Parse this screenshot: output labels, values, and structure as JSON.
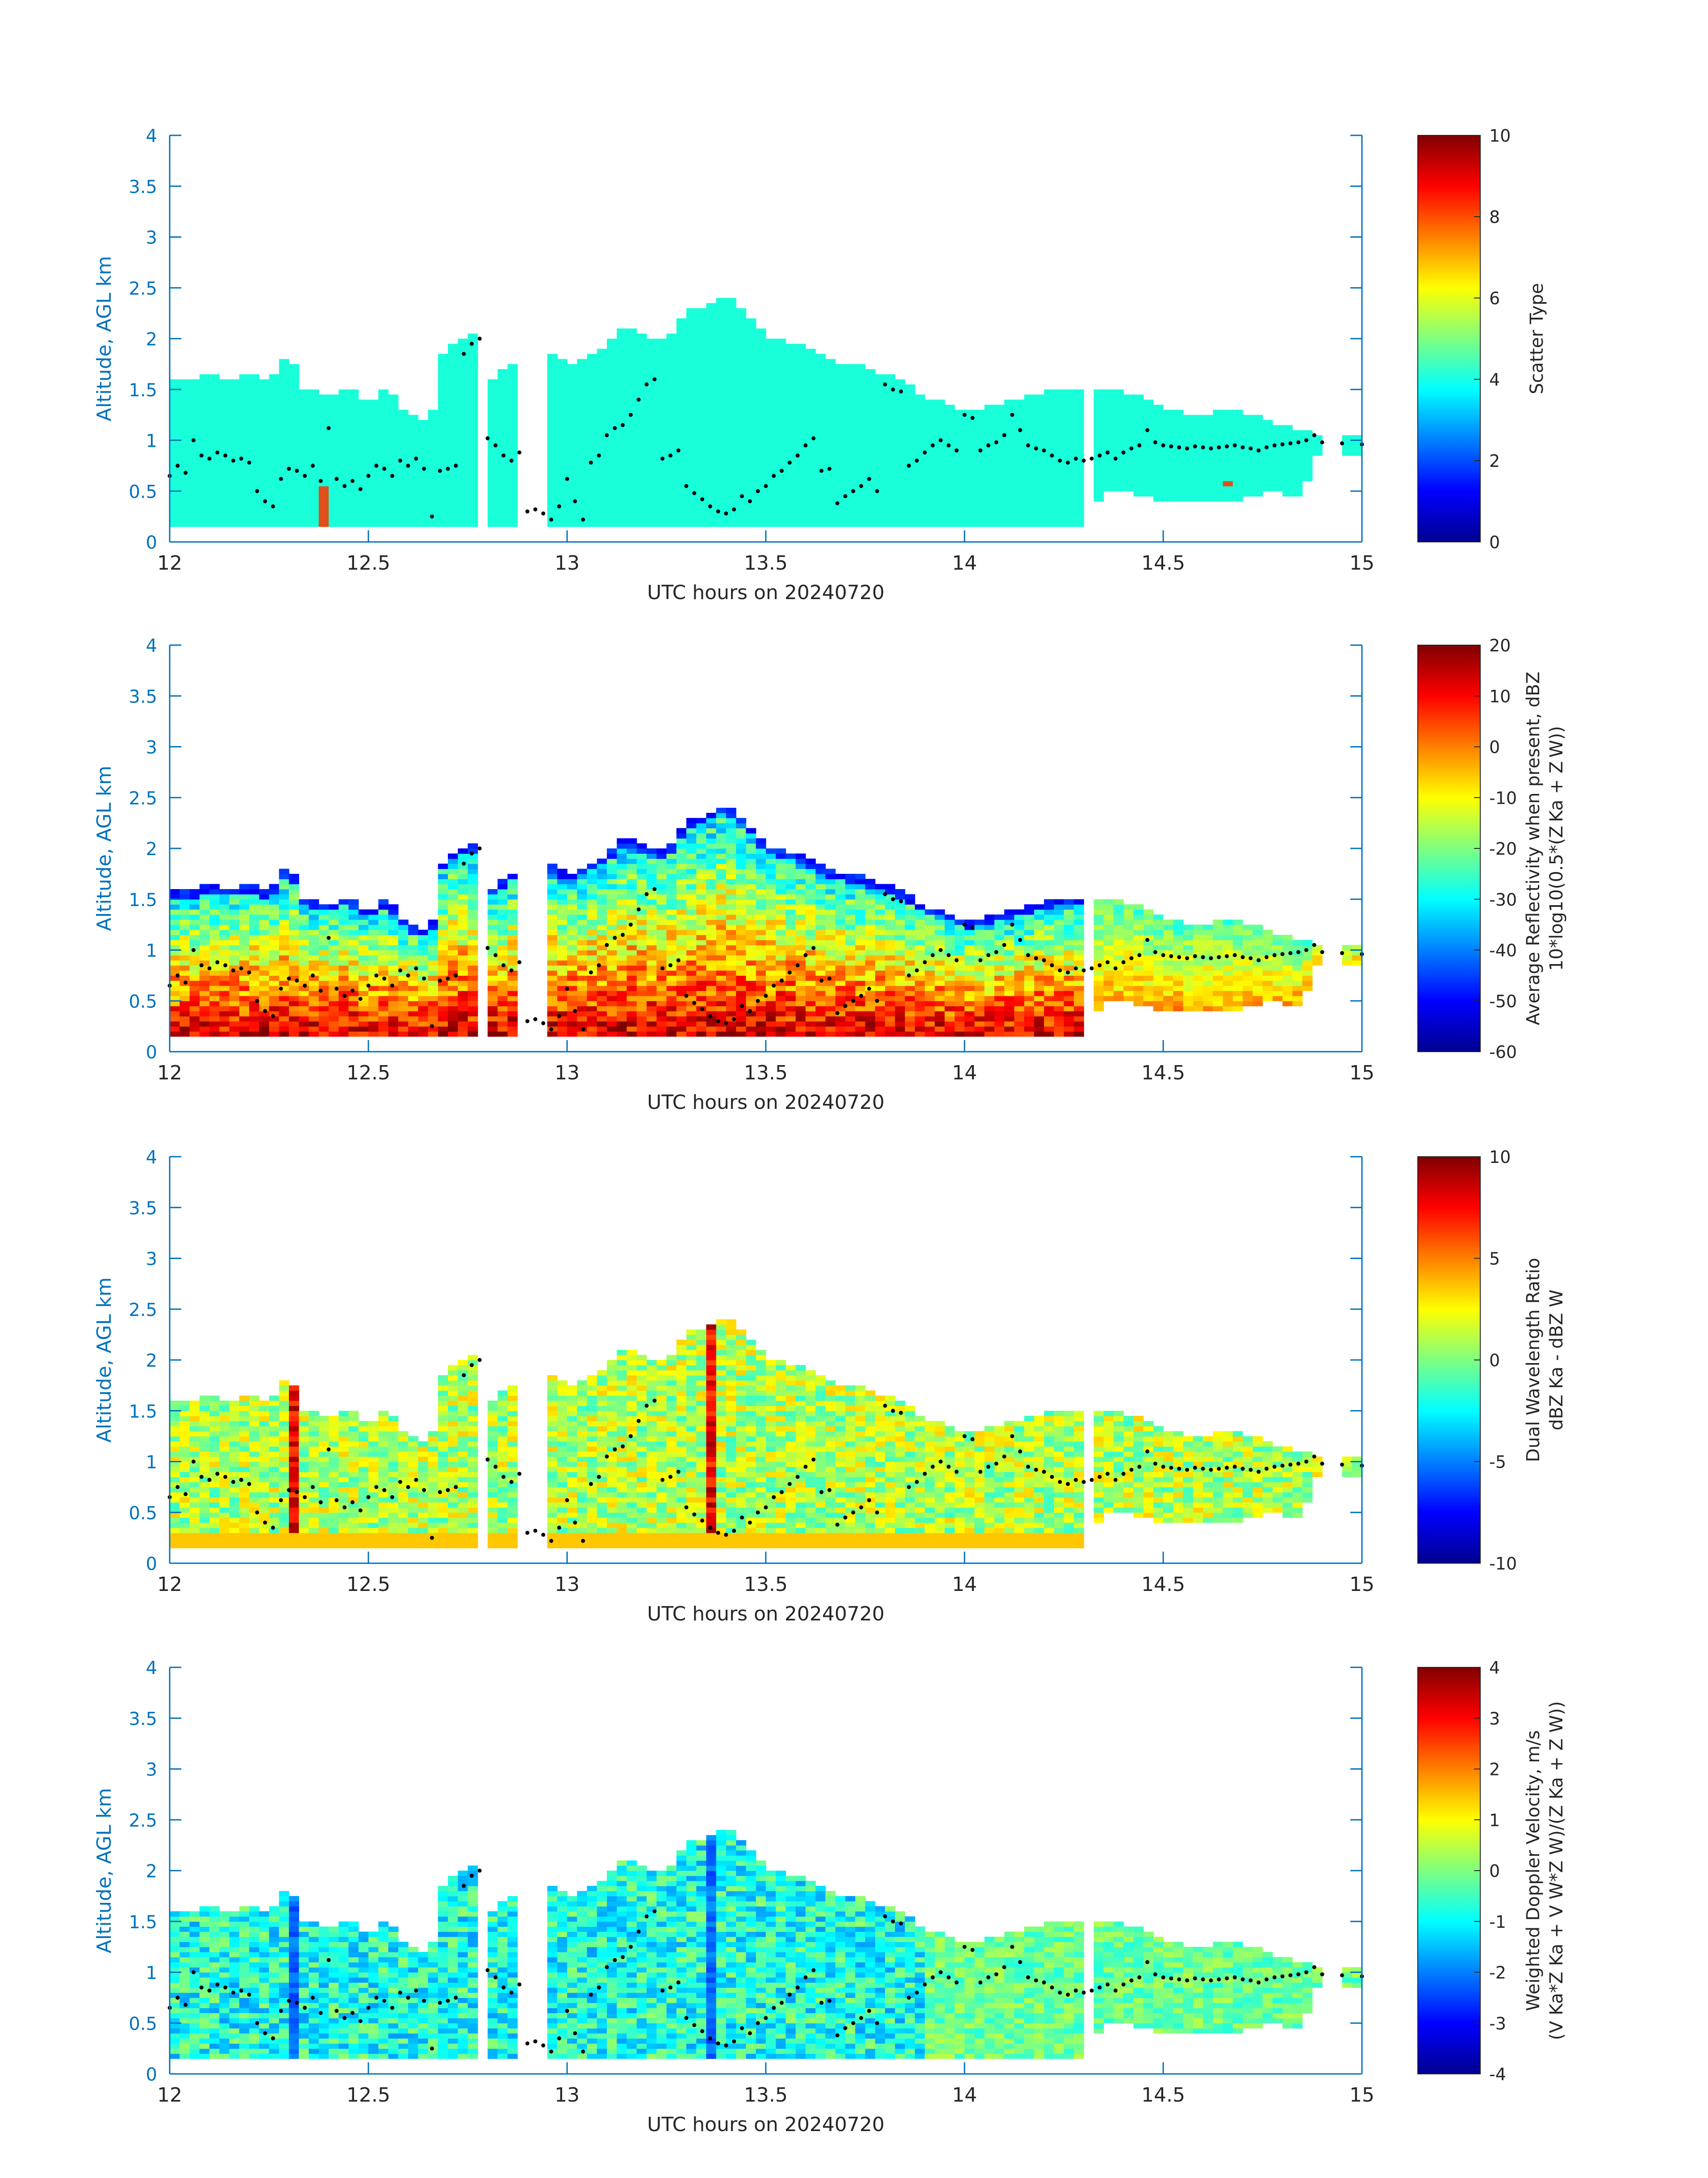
{
  "figure": {
    "xlabel": "UTC hours on 20240720",
    "ylabel": "Altitude, AGL km"
  },
  "colors": {
    "axis_blue": "#0072bd",
    "dots": "#000000",
    "scatter_fill": "#18ffda",
    "scatter_red": "#e0501a"
  },
  "chart_data": [
    {
      "type": "heatmap",
      "panel": "scatter-type",
      "xlabel": "UTC hours on 20240720",
      "ylabel": "Altitude, AGL km",
      "xlim": [
        12,
        15
      ],
      "ylim": [
        0,
        4
      ],
      "xticks": [
        "12",
        "12.5",
        "13",
        "13.5",
        "14",
        "14.5",
        "15"
      ],
      "yticks": [
        "0",
        "0.5",
        "1",
        "1.5",
        "2",
        "2.5",
        "3",
        "3.5",
        "4"
      ],
      "colorbar": {
        "label": "Scatter Type",
        "min": 0,
        "max": 10,
        "ticks": [
          "0",
          "2",
          "4",
          "6",
          "8",
          "10"
        ]
      },
      "field_note_value": 4.2
    },
    {
      "type": "heatmap",
      "panel": "reflectivity",
      "xlabel": "UTC hours on 20240720",
      "ylabel": "Altitude, AGL km",
      "xlim": [
        12,
        15
      ],
      "ylim": [
        0,
        4
      ],
      "xticks": [
        "12",
        "12.5",
        "13",
        "13.5",
        "14",
        "14.5",
        "15"
      ],
      "yticks": [
        "0",
        "0.5",
        "1",
        "1.5",
        "2",
        "2.5",
        "3",
        "3.5",
        "4"
      ],
      "colorbar": {
        "label_line1": "Average Reflectivity when present, dBZ",
        "label_line2": "10*log10(0.5*(Z",
        "min": -60,
        "max": 20,
        "ticks": [
          "-60",
          "-50",
          "-40",
          "-30",
          "-20",
          "-10",
          "0",
          "10",
          "20"
        ]
      }
    },
    {
      "type": "heatmap",
      "panel": "dwr",
      "xlabel": "UTC hours on 20240720",
      "ylabel": "Altitude, AGL km",
      "xlim": [
        12,
        15
      ],
      "ylim": [
        0,
        4
      ],
      "xticks": [
        "12",
        "12.5",
        "13",
        "13.5",
        "14",
        "14.5",
        "15"
      ],
      "yticks": [
        "0",
        "0.5",
        "1",
        "1.5",
        "2",
        "2.5",
        "3",
        "3.5",
        "4"
      ],
      "colorbar": {
        "label_line1": "Dual Wavelength Ratio",
        "label_line2": "dBZ",
        "min": -10,
        "max": 10,
        "ticks": [
          "-10",
          "-5",
          "0",
          "5",
          "10"
        ]
      }
    },
    {
      "type": "heatmap",
      "panel": "velocity",
      "xlabel": "UTC hours on 20240720",
      "ylabel": "Altitude, AGL km",
      "xlim": [
        12,
        15
      ],
      "ylim": [
        0,
        4
      ],
      "xticks": [
        "12",
        "12.5",
        "13",
        "13.5",
        "14",
        "14.5",
        "15"
      ],
      "yticks": [
        "0",
        "0.5",
        "1",
        "1.5",
        "2",
        "2.5",
        "3",
        "3.5",
        "4"
      ],
      "colorbar": {
        "label_line1": "Weighted Doppler Velocity, m/s",
        "min": -4,
        "max": 4,
        "ticks": [
          "-4",
          "-3",
          "-2",
          "-1",
          "0",
          "1",
          "2",
          "3",
          "4"
        ]
      }
    }
  ],
  "cloud": {
    "top_profile": [
      [
        12.0,
        1.58
      ],
      [
        12.05,
        1.55
      ],
      [
        12.1,
        1.62
      ],
      [
        12.15,
        1.58
      ],
      [
        12.2,
        1.62
      ],
      [
        12.25,
        1.55
      ],
      [
        12.3,
        1.85
      ],
      [
        12.33,
        1.5
      ],
      [
        12.4,
        1.42
      ],
      [
        12.45,
        1.52
      ],
      [
        12.5,
        1.35
      ],
      [
        12.55,
        1.5
      ],
      [
        12.58,
        1.3
      ],
      [
        12.62,
        1.2
      ],
      [
        12.66,
        1.2
      ],
      [
        12.68,
        1.8
      ],
      [
        12.72,
        1.98
      ],
      [
        12.77,
        2.02
      ],
      [
        12.8,
        1.55
      ],
      [
        12.85,
        1.72
      ],
      [
        12.9,
        1.8
      ],
      [
        12.95,
        1.85
      ],
      [
        13.0,
        1.72
      ],
      [
        13.05,
        1.8
      ],
      [
        13.1,
        1.92
      ],
      [
        13.15,
        2.1
      ],
      [
        13.2,
        2.0
      ],
      [
        13.25,
        1.95
      ],
      [
        13.3,
        2.25
      ],
      [
        13.35,
        2.3
      ],
      [
        13.4,
        2.42
      ],
      [
        13.45,
        2.25
      ],
      [
        13.5,
        2.0
      ],
      [
        13.55,
        1.95
      ],
      [
        13.6,
        1.9
      ],
      [
        13.65,
        1.78
      ],
      [
        13.7,
        1.72
      ],
      [
        13.75,
        1.7
      ],
      [
        13.8,
        1.62
      ],
      [
        13.85,
        1.55
      ],
      [
        13.9,
        1.4
      ],
      [
        13.95,
        1.38
      ],
      [
        14.0,
        1.25
      ],
      [
        14.05,
        1.3
      ],
      [
        14.1,
        1.35
      ],
      [
        14.15,
        1.4
      ],
      [
        14.2,
        1.45
      ],
      [
        14.25,
        1.5
      ],
      [
        14.3,
        1.5
      ],
      [
        14.35,
        1.48
      ],
      [
        14.4,
        1.45
      ],
      [
        14.45,
        1.4
      ],
      [
        14.5,
        1.28
      ],
      [
        14.55,
        1.25
      ],
      [
        14.6,
        1.22
      ],
      [
        14.65,
        1.28
      ],
      [
        14.7,
        1.25
      ],
      [
        14.75,
        1.2
      ],
      [
        14.8,
        1.12
      ],
      [
        14.85,
        1.08
      ],
      [
        14.88,
        1.05
      ],
      [
        14.95,
        1.05
      ],
      [
        15.0,
        1.05
      ]
    ],
    "base_profile": [
      [
        12.0,
        0.18
      ],
      [
        12.3,
        0.18
      ],
      [
        12.6,
        0.18
      ],
      [
        12.77,
        0.18
      ],
      [
        13.0,
        0.18
      ],
      [
        14.0,
        0.18
      ],
      [
        14.31,
        0.18
      ],
      [
        14.35,
        0.5
      ],
      [
        14.4,
        0.52
      ],
      [
        14.45,
        0.48
      ],
      [
        14.5,
        0.4
      ],
      [
        14.55,
        0.45
      ],
      [
        14.6,
        0.42
      ],
      [
        14.65,
        0.4
      ],
      [
        14.7,
        0.45
      ],
      [
        14.75,
        0.5
      ],
      [
        14.8,
        0.5
      ],
      [
        14.85,
        0.48
      ],
      [
        14.88,
        0.88
      ],
      [
        14.95,
        0.88
      ],
      [
        15.0,
        0.88
      ]
    ],
    "gaps": [
      [
        12.785,
        12.79
      ],
      [
        12.88,
        12.945
      ]
    ],
    "mixing_layer": [
      [
        12.0,
        0.65
      ],
      [
        12.02,
        0.75
      ],
      [
        12.04,
        0.68
      ],
      [
        12.06,
        1.0
      ],
      [
        12.08,
        0.85
      ],
      [
        12.1,
        0.82
      ],
      [
        12.12,
        0.88
      ],
      [
        12.14,
        0.85
      ],
      [
        12.16,
        0.8
      ],
      [
        12.18,
        0.82
      ],
      [
        12.2,
        0.78
      ],
      [
        12.22,
        0.5
      ],
      [
        12.24,
        0.4
      ],
      [
        12.26,
        0.35
      ],
      [
        12.28,
        0.62
      ],
      [
        12.3,
        0.72
      ],
      [
        12.32,
        0.7
      ],
      [
        12.34,
        0.65
      ],
      [
        12.36,
        0.75
      ],
      [
        12.38,
        0.6
      ],
      [
        12.4,
        1.12
      ],
      [
        12.42,
        0.62
      ],
      [
        12.44,
        0.55
      ],
      [
        12.46,
        0.6
      ],
      [
        12.48,
        0.52
      ],
      [
        12.5,
        0.65
      ],
      [
        12.52,
        0.75
      ],
      [
        12.54,
        0.72
      ],
      [
        12.56,
        0.65
      ],
      [
        12.58,
        0.8
      ],
      [
        12.6,
        0.75
      ],
      [
        12.62,
        0.82
      ],
      [
        12.64,
        0.72
      ],
      [
        12.66,
        0.25
      ],
      [
        12.68,
        0.7
      ],
      [
        12.7,
        0.72
      ],
      [
        12.72,
        0.75
      ],
      [
        12.74,
        1.85
      ],
      [
        12.76,
        1.95
      ],
      [
        12.78,
        2.0
      ],
      [
        12.8,
        1.02
      ],
      [
        12.82,
        0.95
      ],
      [
        12.84,
        0.85
      ],
      [
        12.86,
        0.8
      ],
      [
        12.88,
        0.88
      ],
      [
        12.9,
        0.3
      ],
      [
        12.92,
        0.32
      ],
      [
        12.94,
        0.28
      ],
      [
        12.96,
        0.22
      ],
      [
        12.98,
        0.35
      ],
      [
        13.0,
        0.62
      ],
      [
        13.02,
        0.4
      ],
      [
        13.04,
        0.22
      ],
      [
        13.06,
        0.78
      ],
      [
        13.08,
        0.85
      ],
      [
        13.1,
        1.05
      ],
      [
        13.12,
        1.12
      ],
      [
        13.14,
        1.15
      ],
      [
        13.16,
        1.25
      ],
      [
        13.18,
        1.4
      ],
      [
        13.2,
        1.55
      ],
      [
        13.22,
        1.6
      ],
      [
        13.24,
        0.82
      ],
      [
        13.26,
        0.85
      ],
      [
        13.28,
        0.9
      ],
      [
        13.3,
        0.55
      ],
      [
        13.32,
        0.48
      ],
      [
        13.34,
        0.42
      ],
      [
        13.36,
        0.35
      ],
      [
        13.38,
        0.3
      ],
      [
        13.4,
        0.28
      ],
      [
        13.42,
        0.32
      ],
      [
        13.44,
        0.45
      ],
      [
        13.46,
        0.4
      ],
      [
        13.48,
        0.5
      ],
      [
        13.5,
        0.55
      ],
      [
        13.52,
        0.65
      ],
      [
        13.54,
        0.7
      ],
      [
        13.56,
        0.78
      ],
      [
        13.58,
        0.85
      ],
      [
        13.6,
        0.95
      ],
      [
        13.62,
        1.02
      ],
      [
        13.64,
        0.7
      ],
      [
        13.66,
        0.72
      ],
      [
        13.68,
        0.38
      ],
      [
        13.7,
        0.45
      ],
      [
        13.72,
        0.5
      ],
      [
        13.74,
        0.55
      ],
      [
        13.76,
        0.62
      ],
      [
        13.78,
        0.5
      ],
      [
        13.8,
        1.55
      ],
      [
        13.82,
        1.5
      ],
      [
        13.84,
        1.48
      ],
      [
        13.86,
        0.75
      ],
      [
        13.88,
        0.8
      ],
      [
        13.9,
        0.88
      ],
      [
        13.92,
        0.95
      ],
      [
        13.94,
        1.0
      ],
      [
        13.96,
        0.95
      ],
      [
        13.98,
        0.9
      ],
      [
        14.0,
        1.25
      ],
      [
        14.02,
        1.22
      ],
      [
        14.04,
        0.9
      ],
      [
        14.06,
        0.95
      ],
      [
        14.08,
        0.98
      ],
      [
        14.1,
        1.05
      ],
      [
        14.12,
        1.25
      ],
      [
        14.14,
        1.1
      ],
      [
        14.16,
        0.95
      ],
      [
        14.18,
        0.92
      ],
      [
        14.2,
        0.9
      ],
      [
        14.22,
        0.85
      ],
      [
        14.24,
        0.8
      ],
      [
        14.26,
        0.78
      ],
      [
        14.28,
        0.82
      ],
      [
        14.3,
        0.8
      ],
      [
        14.32,
        0.82
      ],
      [
        14.34,
        0.85
      ],
      [
        14.36,
        0.88
      ],
      [
        14.38,
        0.82
      ],
      [
        14.4,
        0.88
      ],
      [
        14.42,
        0.92
      ],
      [
        14.44,
        0.95
      ],
      [
        14.46,
        1.1
      ],
      [
        14.48,
        0.98
      ],
      [
        14.5,
        0.95
      ],
      [
        14.52,
        0.94
      ],
      [
        14.54,
        0.93
      ],
      [
        14.56,
        0.92
      ],
      [
        14.58,
        0.94
      ],
      [
        14.6,
        0.93
      ],
      [
        14.62,
        0.92
      ],
      [
        14.64,
        0.93
      ],
      [
        14.66,
        0.94
      ],
      [
        14.68,
        0.95
      ],
      [
        14.7,
        0.93
      ],
      [
        14.72,
        0.92
      ],
      [
        14.74,
        0.9
      ],
      [
        14.76,
        0.93
      ],
      [
        14.78,
        0.95
      ],
      [
        14.8,
        0.96
      ],
      [
        14.82,
        0.97
      ],
      [
        14.84,
        0.98
      ],
      [
        14.86,
        1.0
      ],
      [
        14.88,
        1.05
      ],
      [
        14.9,
        0.98
      ],
      [
        14.95,
        0.97
      ],
      [
        15.0,
        0.96
      ]
    ]
  }
}
